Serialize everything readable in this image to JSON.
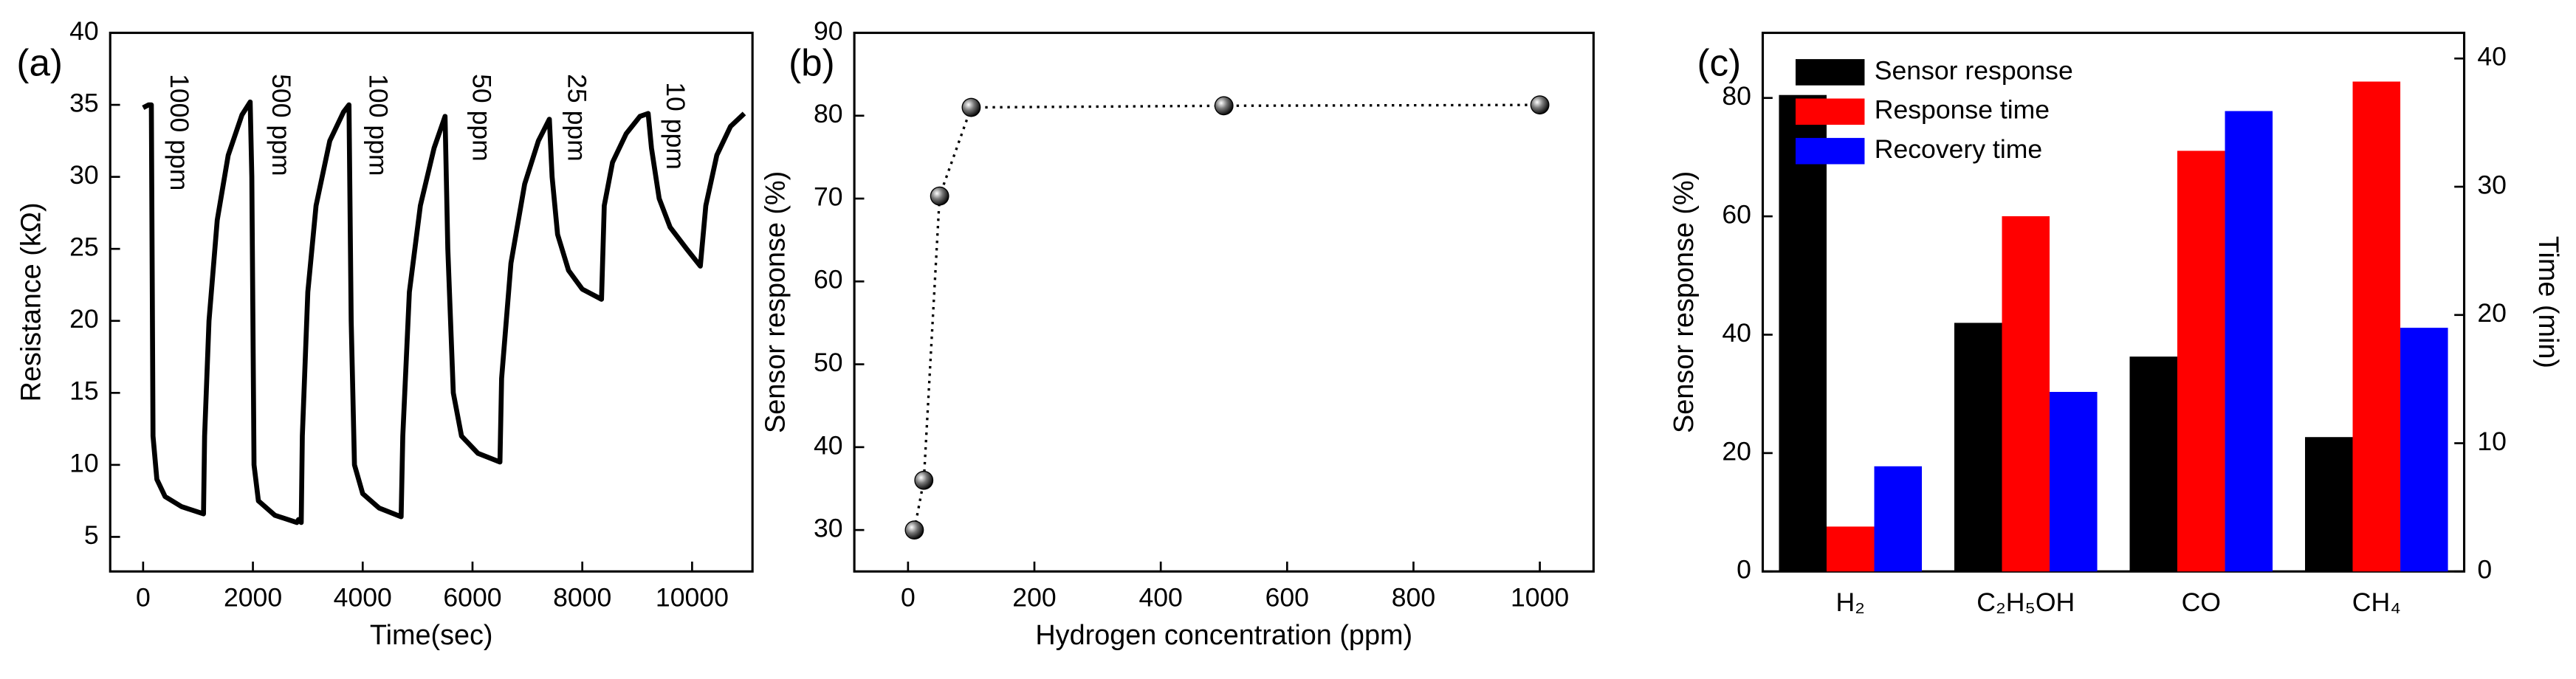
{
  "chart_data": [
    {
      "type": "line",
      "panel_label": "(a)",
      "x_label": "Time(sec)",
      "y_label": "Resistance (kΩ)",
      "color": "#000000",
      "x": [
        0,
        100,
        150,
        180,
        250,
        400,
        700,
        1100,
        1120,
        1200,
        1350,
        1550,
        1800,
        1950,
        1980,
        2020,
        2100,
        2400,
        2800,
        2830,
        2880,
        2900,
        3000,
        3150,
        3400,
        3650,
        3750,
        3790,
        3850,
        4000,
        4300,
        4700,
        4730,
        4850,
        5050,
        5300,
        5500,
        5550,
        5650,
        5800,
        6100,
        6500,
        6530,
        6700,
        6950,
        7200,
        7400,
        7450,
        7550,
        7750,
        8000,
        8350,
        8400,
        8550,
        8800,
        9050,
        9200,
        9260,
        9400,
        9600,
        9900,
        10150,
        10250,
        10450,
        10700,
        10950
      ],
      "values": [
        34.8,
        35,
        35,
        12,
        9,
        7.8,
        7.1,
        6.6,
        12,
        20,
        27,
        31.5,
        34.3,
        35.2,
        30,
        10,
        7.5,
        6.5,
        6,
        6.2,
        6,
        12,
        22,
        28,
        32.5,
        34.5,
        35,
        20,
        10,
        8,
        7,
        6.4,
        12,
        22,
        28,
        32,
        34.2,
        25,
        15,
        12,
        10.8,
        10.2,
        16,
        24,
        29.5,
        32.5,
        34,
        30,
        26,
        23.5,
        22.2,
        21.5,
        28,
        31,
        33,
        34.2,
        34.4,
        32,
        28.5,
        26.5,
        25,
        23.8,
        28,
        31.5,
        33.5,
        34.4
      ],
      "annotations": [
        "1000 ppm",
        "500 ppm",
        "100 ppm",
        "50 ppm",
        "25 ppm",
        "10 ppm"
      ],
      "xlim": [
        -600,
        11100
      ],
      "xticks": [
        0,
        2000,
        4000,
        6000,
        8000,
        10000
      ],
      "ylim": [
        2.6,
        40
      ],
      "yticks": [
        5,
        10,
        15,
        20,
        25,
        30,
        35,
        40
      ]
    },
    {
      "type": "scatter",
      "panel_label": "(b)",
      "x_label": "Hydrogen concentration (ppm)",
      "y_label": "Sensor response (%)",
      "color": "#000000",
      "x": [
        10,
        25,
        50,
        100,
        500,
        1000
      ],
      "values": [
        30,
        36,
        70.3,
        81,
        81.2,
        81.3
      ],
      "xlim": [
        -85,
        1085
      ],
      "xticks": [
        0,
        200,
        400,
        600,
        800,
        1000
      ],
      "ylim": [
        25,
        90
      ],
      "yticks": [
        30,
        40,
        50,
        60,
        70,
        80,
        90
      ]
    },
    {
      "type": "bar",
      "panel_label": "(c)",
      "y_label": "Sensor response (%)",
      "y2_label": "Time (min)",
      "legend": "upper left",
      "categories": [
        "H₂",
        "C₂H₅OH",
        "CO",
        "CH₄"
      ],
      "series": [
        {
          "name": "Sensor response",
          "color": "#000000",
          "values": [
            80.5,
            42,
            36.3,
            22.7
          ]
        },
        {
          "name": "Response time",
          "color": "#ff0000",
          "axis": "y2",
          "values": [
            3.5,
            27.7,
            32.8,
            38.2
          ]
        },
        {
          "name": "Recovery time",
          "color": "#0000ff",
          "axis": "y2",
          "values": [
            8.2,
            14,
            35.9,
            19
          ]
        }
      ],
      "ylim": [
        0,
        91
      ],
      "yticks": [
        0,
        20,
        40,
        60,
        80
      ],
      "y2lim": [
        0,
        42
      ],
      "y2ticks": [
        0,
        10,
        20,
        30,
        40
      ]
    }
  ]
}
